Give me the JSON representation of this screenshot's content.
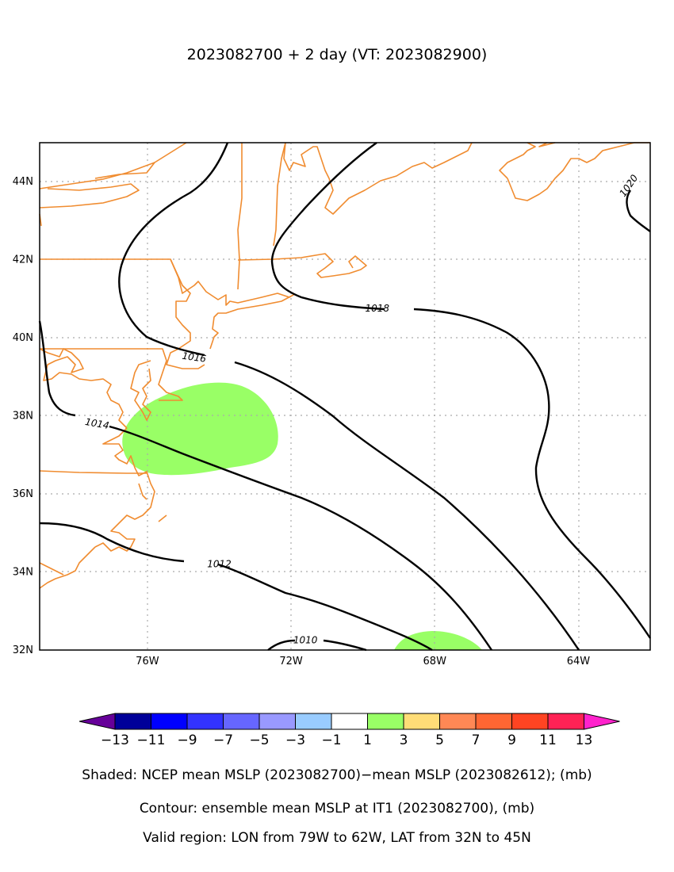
{
  "title": "2023082700 + 2 day (VT: 2023082900)",
  "map": {
    "lon_range": [
      -79,
      -62
    ],
    "lat_range": [
      32,
      45
    ],
    "lat_ticks": [
      {
        "value": 44,
        "label": "44N"
      },
      {
        "value": 42,
        "label": "42N"
      },
      {
        "value": 40,
        "label": "40N"
      },
      {
        "value": 38,
        "label": "38N"
      },
      {
        "value": 36,
        "label": "36N"
      },
      {
        "value": 34,
        "label": "34N"
      },
      {
        "value": 32,
        "label": "32N"
      }
    ],
    "lon_ticks": [
      {
        "value": -76,
        "label": "76W"
      },
      {
        "value": -72,
        "label": "72W"
      },
      {
        "value": -68,
        "label": "68W"
      },
      {
        "value": -64,
        "label": "64W"
      }
    ],
    "grid": true,
    "contour_color": "#000000",
    "coastline_color": "#f08c30",
    "contour_labels": [
      {
        "label": "1010",
        "lon": -71.6,
        "lat": 32.25
      },
      {
        "label": "1012",
        "lon": -74.0,
        "lat": 34.2
      },
      {
        "label": "1014",
        "lon": -77.4,
        "lat": 37.8
      },
      {
        "label": "1016",
        "lon": -74.7,
        "lat": 39.5
      },
      {
        "label": "1018",
        "lon": -69.6,
        "lat": 40.75
      },
      {
        "label": "1020",
        "lon": -62.6,
        "lat": 43.9
      }
    ],
    "anomaly_regions": [
      {
        "value_range": "1 to 3",
        "color": "#99ff66",
        "center": [
          -74.6,
          37.7
        ]
      },
      {
        "value_range": "1 to 3",
        "color": "#99ff66",
        "center": [
          -68.0,
          32.2
        ]
      }
    ]
  },
  "colorbar": {
    "labels": [
      "−13",
      "−11",
      "−9",
      "−7",
      "−5",
      "−3",
      "−1",
      "1",
      "3",
      "5",
      "7",
      "9",
      "11",
      "13"
    ],
    "colors": [
      "#000099",
      "#0000ff",
      "#3333ff",
      "#6666ff",
      "#9999ff",
      "#99ccff",
      "#ffffff",
      "#99ff66",
      "#ffdd77",
      "#ff8855",
      "#ff6633",
      "#ff4422",
      "#ff2255"
    ],
    "low_color": "#660099",
    "high_color": "#ff22cc"
  },
  "captions": {
    "shaded": "Shaded: NCEP mean MSLP (2023082700)−mean MSLP (2023082612); (mb)",
    "contour": "Contour: ensemble mean MSLP at IT1 (2023082700), (mb)",
    "region": "Valid region: LON from 79W to 62W, LAT from 32N to 45N"
  }
}
